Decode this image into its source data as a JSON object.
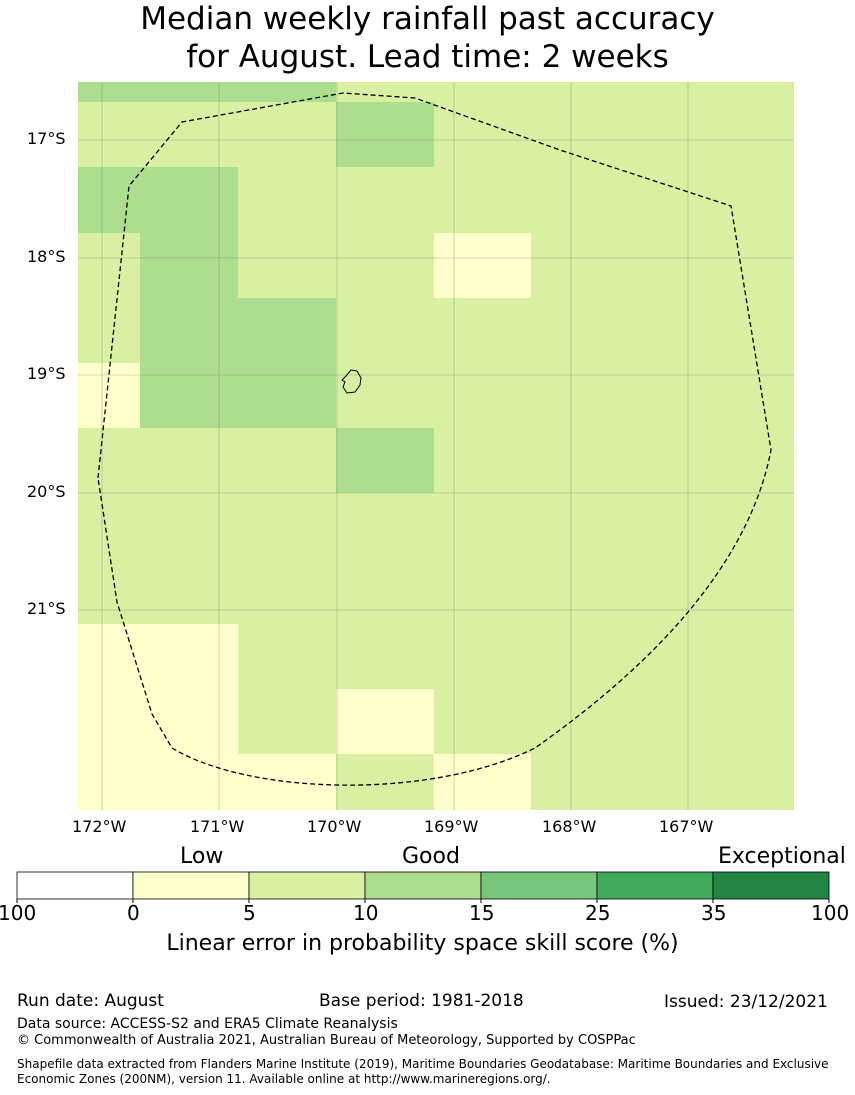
{
  "title": {
    "line1": "Median weekly rainfall past accuracy",
    "line2": "for August. Lead time: 2 weeks"
  },
  "map": {
    "lat_labels": [
      "17°S",
      "18°S",
      "19°S",
      "20°S",
      "21°S"
    ],
    "lon_labels": [
      "172°W",
      "171°W",
      "170°W",
      "169°W",
      "168°W",
      "167°W"
    ],
    "grid_categories": [
      [
        "10-15",
        "10-15",
        "10-15",
        "5-10",
        "5-10",
        "5-10",
        "5-10"
      ],
      [
        "5-10",
        "5-10",
        "5-10",
        "10-15",
        "5-10",
        "5-10",
        "5-10"
      ],
      [
        "10-15",
        "10-15",
        "5-10",
        "5-10",
        "5-10",
        "5-10",
        "5-10"
      ],
      [
        "5-10",
        "10-15",
        "5-10",
        "5-10",
        "0-5",
        "5-10",
        "5-10"
      ],
      [
        "5-10",
        "10-15",
        "10-15",
        "5-10",
        "5-10",
        "5-10",
        "5-10"
      ],
      [
        "0-5",
        "10-15",
        "10-15",
        "5-10",
        "5-10",
        "5-10",
        "5-10"
      ],
      [
        "5-10",
        "5-10",
        "5-10",
        "10-15",
        "5-10",
        "5-10",
        "5-10"
      ],
      [
        "5-10",
        "5-10",
        "5-10",
        "5-10",
        "5-10",
        "5-10",
        "5-10"
      ],
      [
        "5-10",
        "5-10",
        "5-10",
        "5-10",
        "5-10",
        "5-10",
        "5-10"
      ],
      [
        "0-5",
        "0-5",
        "5-10",
        "5-10",
        "5-10",
        "5-10",
        "5-10"
      ],
      [
        "0-5",
        "0-5",
        "5-10",
        "0-5",
        "5-10",
        "5-10",
        "5-10"
      ],
      [
        "0-5",
        "0-5",
        "0-5",
        "5-10",
        "0-5",
        "5-10",
        "5-10"
      ]
    ]
  },
  "legend": {
    "categories": [
      "Low",
      "Good",
      "Exceptional"
    ],
    "ticks": [
      "100",
      "0",
      "5",
      "10",
      "15",
      "25",
      "35",
      "100"
    ],
    "colors": [
      "#ffffff",
      "#ffffcc",
      "#d9f0a3",
      "#addd8e",
      "#78c679",
      "#41ab5d",
      "#238443"
    ],
    "title": "Linear error in probability space skill score (%)"
  },
  "colors": {
    "0-5": "#ffffcc",
    "5-10": "#d9f0a3",
    "10-15": "#addd8e",
    "gridline": "#6f8f6f",
    "eez_line": "#000000"
  },
  "footer": {
    "run_date": "Run date: August",
    "base_period": "Base period: 1981-2018",
    "issued": "Issued: 23/12/2021",
    "data_source": "Data source: ACCESS-S2 and ERA5 Climate Reanalysis",
    "copyright": "© Commonwealth of Australia 2021, Australian Bureau of Meteorology, Supported by COSPPac",
    "shapefile_line1": "Shapefile data extracted from Flanders Marine Institute (2019), Maritime Boundaries Geodatabase: Maritime Boundaries and Exclusive",
    "shapefile_line2": "Economic Zones (200NM), version 11. Available online at http://www.marineregions.org/."
  }
}
